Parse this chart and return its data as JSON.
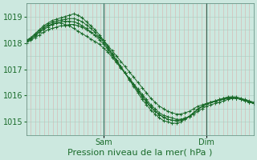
{
  "xlabel": "Pression niveau de la mer( hPa )",
  "bg_color": "#cce8df",
  "plot_bg_color": "#cce8df",
  "line_color": "#1a6b2a",
  "grid_v_color": "#dd9999",
  "grid_h_color": "#aaccc0",
  "tick_color": "#1a6b2a",
  "spine_color": "#5a8a7a",
  "ylim": [
    1014.5,
    1019.5
  ],
  "yticks": [
    1015,
    1016,
    1017,
    1018,
    1019
  ],
  "xlabel_fontsize": 8,
  "tick_fontsize": 7,
  "day_labels": [
    "Sam",
    "Dim"
  ],
  "vline_color": "#336655",
  "n_total_hours": 54,
  "sam_hour": 18,
  "dim_hour": 42,
  "series": [
    [
      1018.0,
      1018.1,
      1018.2,
      1018.3,
      1018.4,
      1018.5,
      1018.55,
      1018.6,
      1018.65,
      1018.65,
      1018.7,
      1018.7,
      1018.65,
      1018.6,
      1018.5,
      1018.4,
      1018.3,
      1018.2,
      1018.1,
      1017.9,
      1017.7,
      1017.5,
      1017.3,
      1017.1,
      1016.9,
      1016.7,
      1016.5,
      1016.3,
      1016.1,
      1015.9,
      1015.75,
      1015.6,
      1015.5,
      1015.4,
      1015.35,
      1015.3,
      1015.3,
      1015.35,
      1015.4,
      1015.5,
      1015.6,
      1015.65,
      1015.7,
      1015.75,
      1015.8,
      1015.85,
      1015.9,
      1015.92,
      1015.95,
      1015.95,
      1015.9,
      1015.85,
      1015.8,
      1015.75
    ],
    [
      1018.05,
      1018.15,
      1018.25,
      1018.4,
      1018.5,
      1018.6,
      1018.7,
      1018.75,
      1018.75,
      1018.7,
      1018.65,
      1018.55,
      1018.45,
      1018.35,
      1018.25,
      1018.15,
      1018.05,
      1017.95,
      1017.8,
      1017.65,
      1017.45,
      1017.25,
      1017.05,
      1016.85,
      1016.65,
      1016.45,
      1016.25,
      1016.05,
      1015.85,
      1015.65,
      1015.5,
      1015.35,
      1015.25,
      1015.2,
      1015.15,
      1015.1,
      1015.1,
      1015.15,
      1015.2,
      1015.3,
      1015.4,
      1015.5,
      1015.6,
      1015.65,
      1015.7,
      1015.75,
      1015.8,
      1015.85,
      1015.9,
      1015.9,
      1015.85,
      1015.8,
      1015.75,
      1015.7
    ],
    [
      1018.1,
      1018.2,
      1018.35,
      1018.5,
      1018.65,
      1018.75,
      1018.85,
      1018.9,
      1018.95,
      1019.0,
      1019.05,
      1019.1,
      1019.05,
      1018.95,
      1018.8,
      1018.65,
      1018.5,
      1018.3,
      1018.1,
      1017.85,
      1017.6,
      1017.35,
      1017.1,
      1016.85,
      1016.6,
      1016.35,
      1016.1,
      1015.85,
      1015.65,
      1015.45,
      1015.3,
      1015.15,
      1015.05,
      1015.0,
      1014.95,
      1014.95,
      1015.0,
      1015.1,
      1015.2,
      1015.35,
      1015.5,
      1015.6,
      1015.7,
      1015.75,
      1015.8,
      1015.85,
      1015.9,
      1015.95,
      1015.95,
      1015.9,
      1015.85,
      1015.8,
      1015.75,
      1015.7
    ],
    [
      1018.05,
      1018.15,
      1018.28,
      1018.42,
      1018.55,
      1018.65,
      1018.72,
      1018.77,
      1018.8,
      1018.82,
      1018.82,
      1018.8,
      1018.75,
      1018.65,
      1018.55,
      1018.42,
      1018.28,
      1018.12,
      1017.95,
      1017.75,
      1017.52,
      1017.3,
      1017.07,
      1016.85,
      1016.62,
      1016.4,
      1016.17,
      1015.95,
      1015.75,
      1015.55,
      1015.4,
      1015.27,
      1015.17,
      1015.1,
      1015.07,
      1015.05,
      1015.07,
      1015.13,
      1015.22,
      1015.35,
      1015.48,
      1015.58,
      1015.67,
      1015.73,
      1015.78,
      1015.83,
      1015.87,
      1015.9,
      1015.92,
      1015.9,
      1015.87,
      1015.82,
      1015.77,
      1015.72
    ],
    [
      1018.08,
      1018.18,
      1018.32,
      1018.47,
      1018.6,
      1018.7,
      1018.78,
      1018.83,
      1018.87,
      1018.9,
      1018.92,
      1018.92,
      1018.88,
      1018.8,
      1018.68,
      1018.55,
      1018.4,
      1018.22,
      1018.02,
      1017.8,
      1017.57,
      1017.33,
      1017.1,
      1016.87,
      1016.64,
      1016.42,
      1016.2,
      1015.98,
      1015.78,
      1015.58,
      1015.42,
      1015.28,
      1015.18,
      1015.1,
      1015.06,
      1015.04,
      1015.06,
      1015.12,
      1015.22,
      1015.35,
      1015.48,
      1015.58,
      1015.68,
      1015.73,
      1015.78,
      1015.83,
      1015.88,
      1015.9,
      1015.92,
      1015.9,
      1015.87,
      1015.82,
      1015.77,
      1015.72
    ]
  ]
}
